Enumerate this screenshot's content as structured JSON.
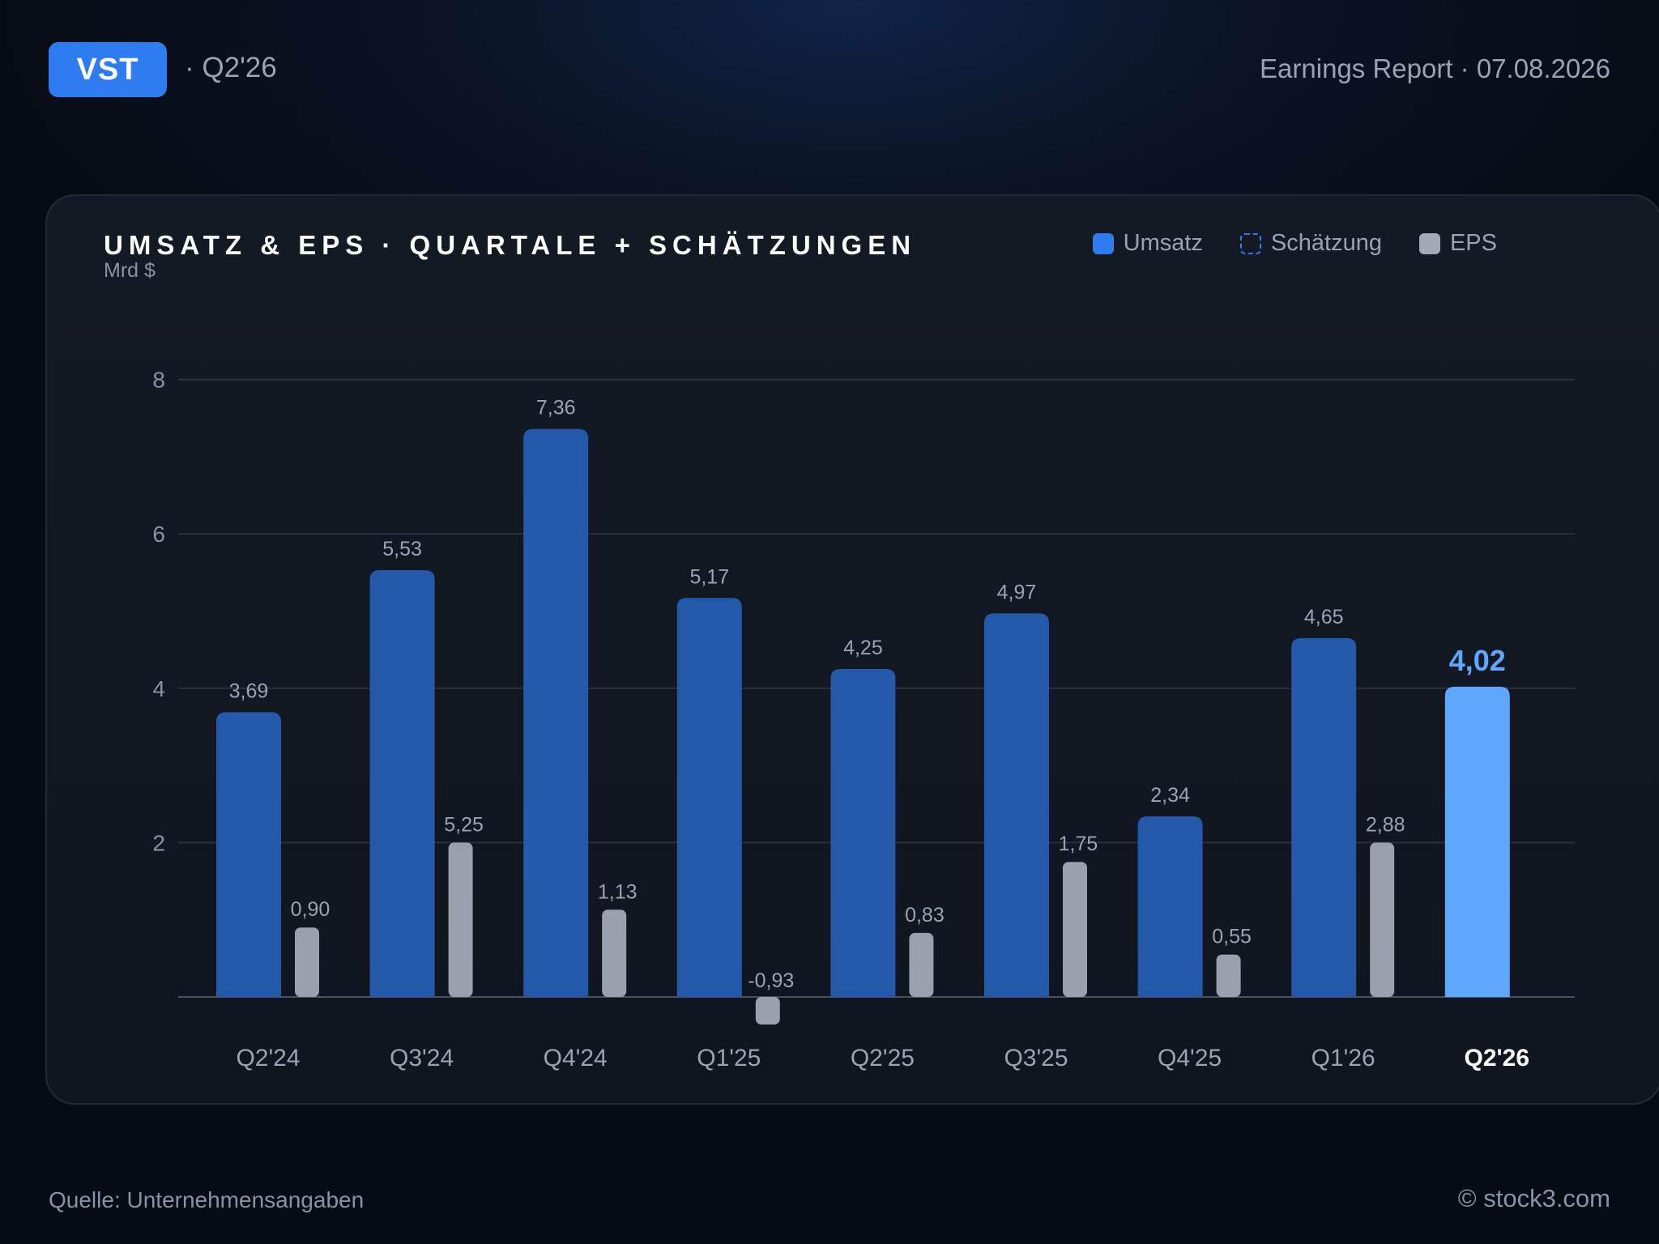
{
  "header": {
    "ticker": "VST",
    "quarter": "· Q2'26",
    "report": "Earnings Report · 07.08.2026"
  },
  "legend": {
    "umsatz": "Umsatz",
    "estimate": "Schätzung",
    "eps": "EPS"
  },
  "footer": {
    "source": "Quelle: Unternehmensangaben",
    "copyright": "© stock3.com"
  },
  "colors": {
    "revenue": "#2459a9",
    "estimate": "#5ea6ff",
    "eps": "#9aa1ad",
    "accent": "#2f7cf0"
  },
  "chart_data": {
    "type": "bar",
    "title": "UMSATZ & EPS · QUARTALE + SCHÄTZUNGEN",
    "ylabel": "Mrd $",
    "ylim": [
      0,
      8
    ],
    "yticks": [
      2,
      4,
      6,
      8
    ],
    "grid": true,
    "legend_position": "top-right",
    "categories": [
      "Q2'24",
      "Q3'24",
      "Q4'24",
      "Q1'25",
      "Q2'25",
      "Q3'25",
      "Q4'25",
      "Q1'26",
      "Q2'26"
    ],
    "series": [
      {
        "name": "Umsatz",
        "values": [
          3.69,
          5.53,
          7.36,
          5.17,
          4.25,
          4.97,
          2.34,
          4.65,
          4.02
        ],
        "labels": [
          "3,69",
          "5,53",
          "7,36",
          "5,17",
          "4,25",
          "4,97",
          "2,34",
          "4,65",
          "4,02"
        ],
        "estimate": [
          false,
          false,
          false,
          false,
          false,
          false,
          false,
          false,
          true
        ]
      },
      {
        "name": "EPS",
        "values": [
          0.9,
          5.25,
          1.13,
          -0.93,
          0.83,
          1.75,
          0.55,
          2.88,
          null
        ],
        "labels": [
          "0,90",
          "5,25",
          "1,13",
          "-0,93",
          "0,83",
          "1,75",
          "0,55",
          "2,88",
          ""
        ]
      }
    ]
  }
}
